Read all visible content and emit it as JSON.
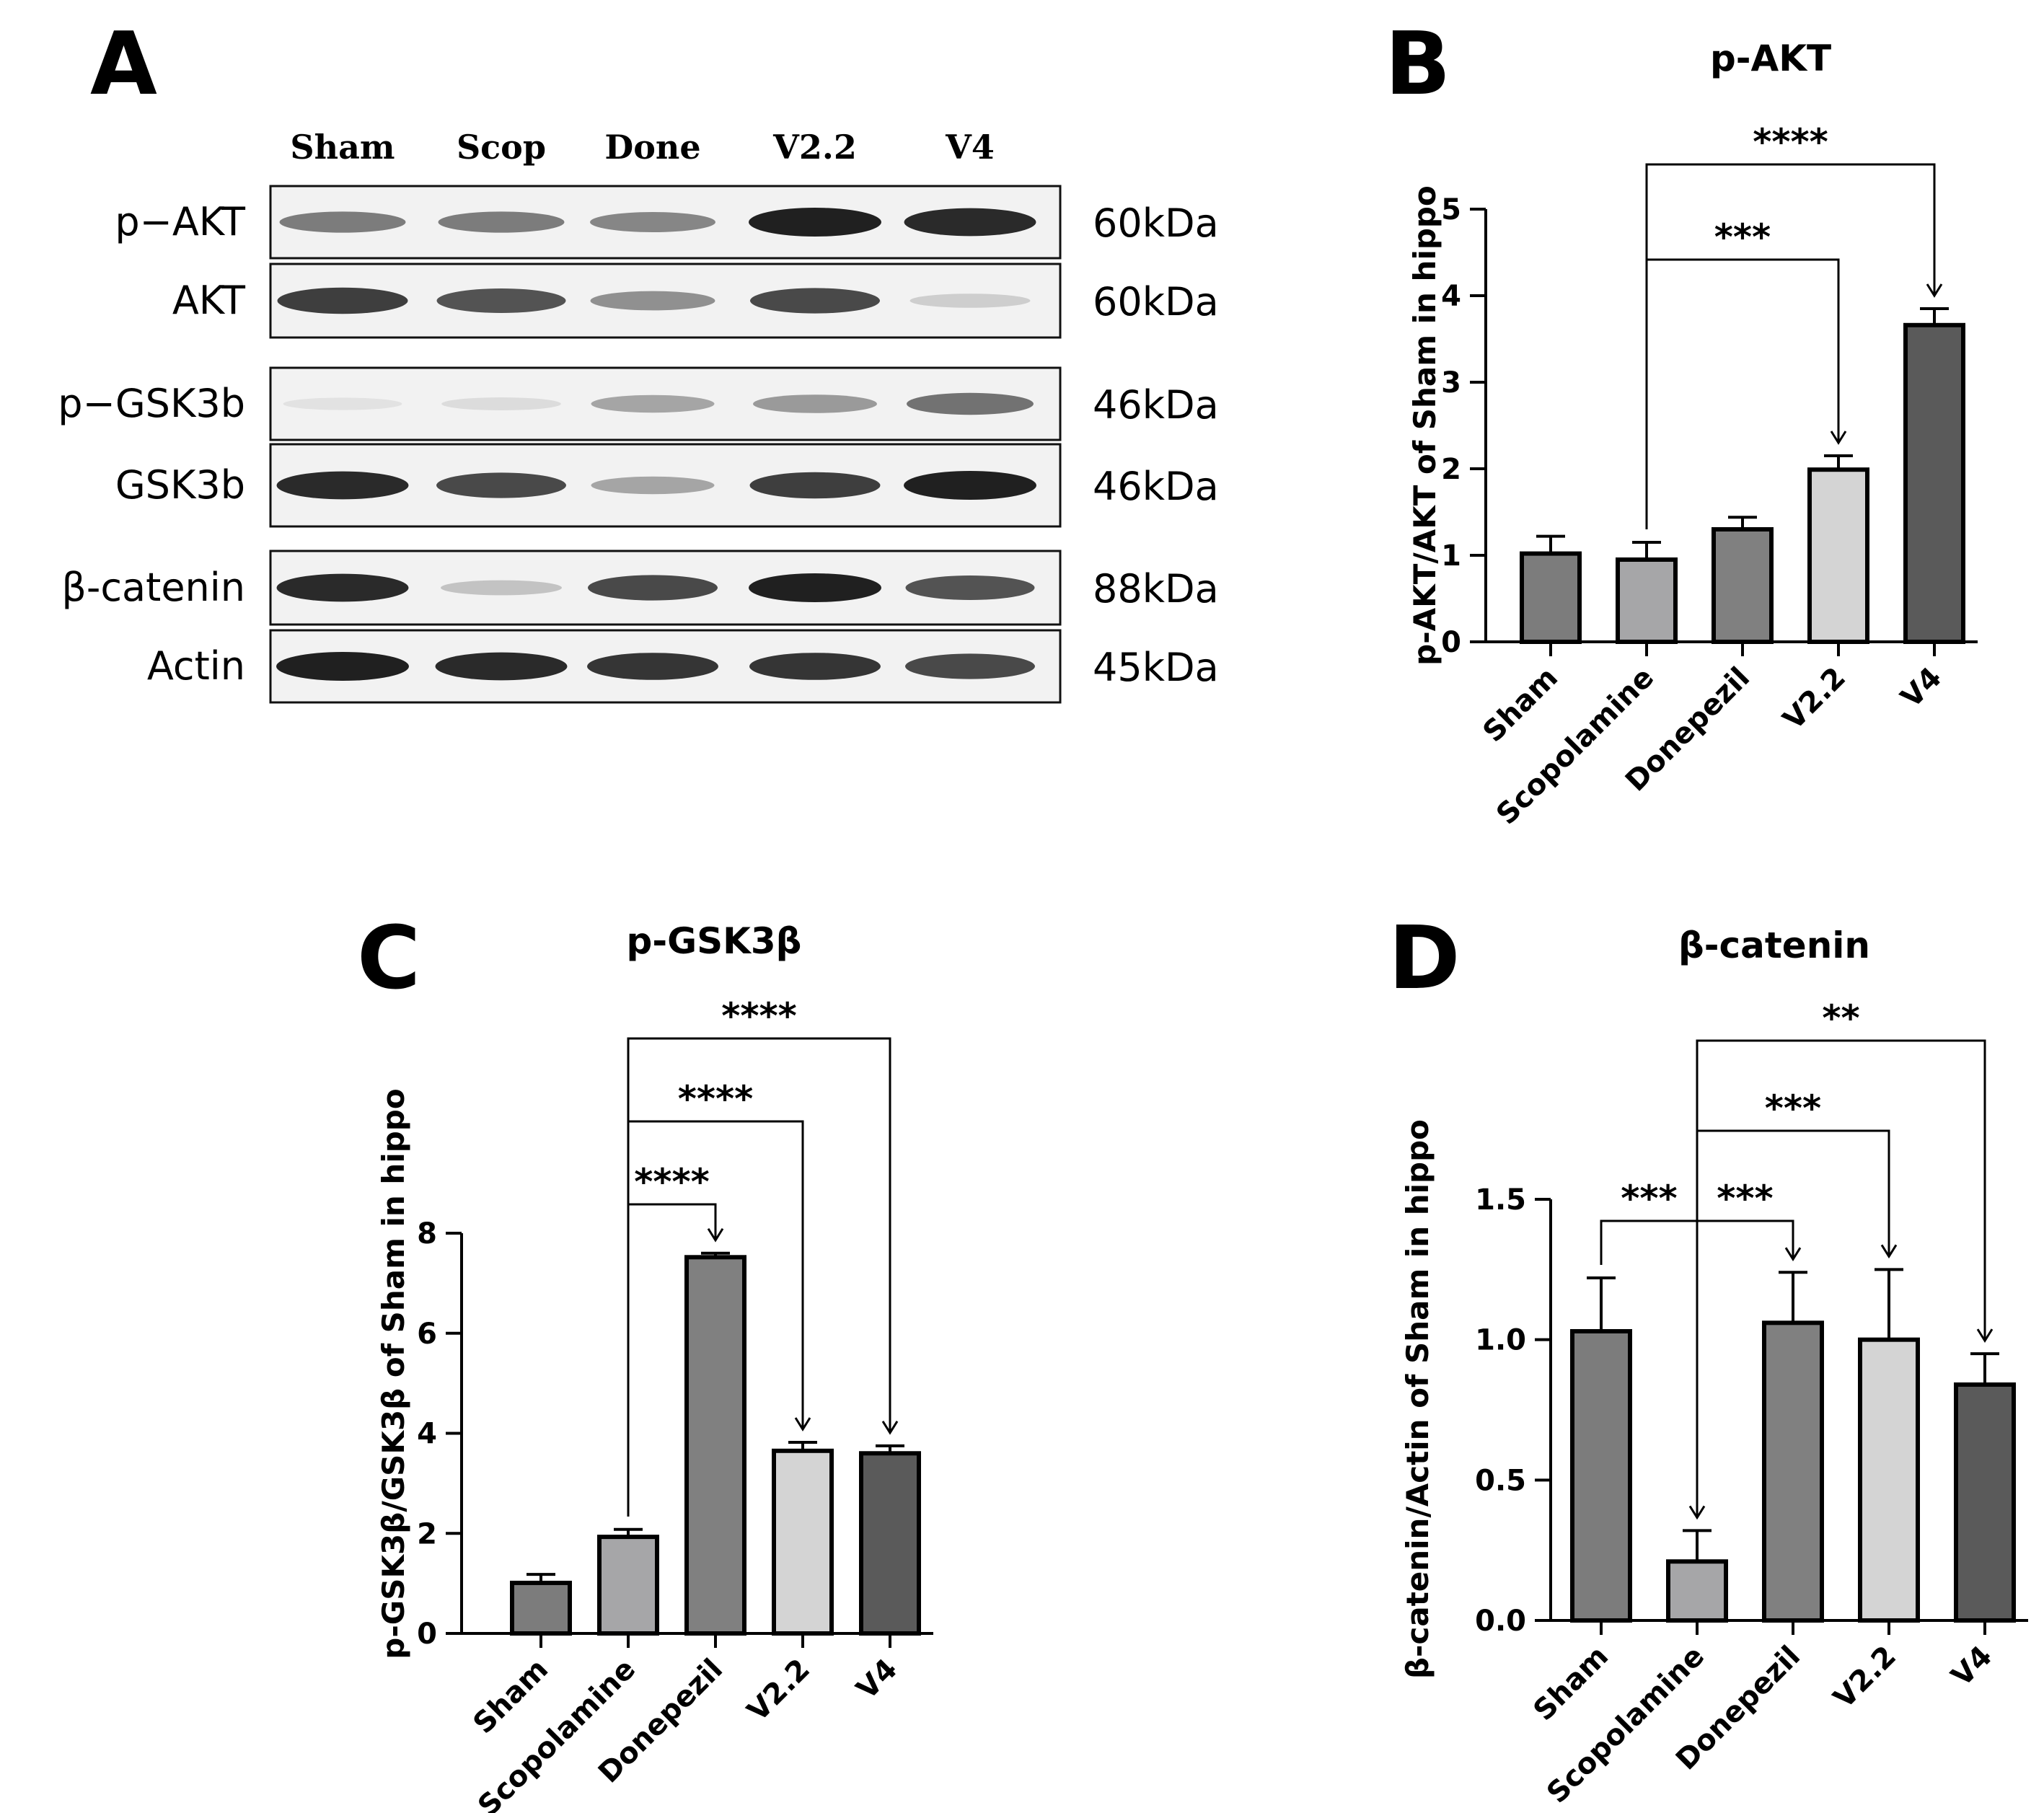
{
  "blot": {
    "panel_letter": "A",
    "lanes": [
      "Sham",
      "Scop",
      "Done",
      "V2.2",
      "V4"
    ],
    "rows": [
      {
        "label": "p−AKT",
        "kda": "60kDa",
        "bands": [
          0.55,
          0.55,
          0.5,
          1.0,
          0.95
        ]
      },
      {
        "label": "AKT",
        "kda": "60kDa",
        "bands": [
          0.85,
          0.75,
          0.45,
          0.8,
          0.15
        ]
      },
      {
        "label": "p−GSK3b",
        "kda": "46kDa",
        "bands": [
          0.05,
          0.08,
          0.35,
          0.4,
          0.6
        ]
      },
      {
        "label": "GSK3b",
        "kda": "46kDa",
        "bands": [
          0.95,
          0.8,
          0.35,
          0.85,
          1.0
        ]
      },
      {
        "label": "β-catenin",
        "kda": "88kDa",
        "bands": [
          0.95,
          0.2,
          0.8,
          1.0,
          0.75
        ]
      },
      {
        "label": "Actin",
        "kda": "45kDa",
        "bands": [
          1.0,
          0.95,
          0.9,
          0.9,
          0.8
        ]
      }
    ]
  },
  "panels": [
    {
      "letter": "B"
    },
    {
      "letter": "C"
    },
    {
      "letter": "D"
    }
  ],
  "chart_data": [
    {
      "type": "bar",
      "title": "p-AKT",
      "ylabel": "p-AKT/AKT of Sham in hippo",
      "xlabel": "",
      "categories": [
        "Sham",
        "Scopolamine",
        "Donepezil",
        "V2.2",
        "V4"
      ],
      "values": [
        1.02,
        0.95,
        1.3,
        1.99,
        3.66
      ],
      "errors": [
        0.2,
        0.2,
        0.14,
        0.16,
        0.19
      ],
      "colors": [
        "#7c7c7c",
        "#a6a6a8",
        "#808080",
        "#d4d4d4",
        "#5a5a5a"
      ],
      "ylim": [
        0,
        5
      ],
      "yticks": [
        "0",
        "1",
        "2",
        "3",
        "4",
        "5"
      ],
      "yticks_values": [
        0,
        1,
        2,
        3,
        4,
        5
      ],
      "significance": [
        {
          "from": "Scopolamine",
          "to": "V2.2",
          "label": "***"
        },
        {
          "from": "Scopolamine",
          "to": "V4",
          "label": "****"
        }
      ]
    },
    {
      "type": "bar",
      "title": "p-GSK3β",
      "ylabel": "p-GSK3β/GSK3β of Sham in hippo",
      "xlabel": "",
      "categories": [
        "Sham",
        "Scopolamine",
        "Donepezil",
        "V2.2",
        "V4"
      ],
      "values": [
        1.01,
        1.93,
        7.52,
        3.65,
        3.6
      ],
      "errors": [
        0.17,
        0.15,
        0.08,
        0.17,
        0.15
      ],
      "colors": [
        "#7c7c7c",
        "#a6a6a8",
        "#808080",
        "#d4d4d4",
        "#5a5a5a"
      ],
      "ylim": [
        0,
        8
      ],
      "yticks": [
        "0",
        "2",
        "4",
        "6",
        "8"
      ],
      "yticks_values": [
        0,
        2,
        4,
        6,
        8
      ],
      "significance": [
        {
          "from": "Scopolamine",
          "to": "Donepezil",
          "label": "****"
        },
        {
          "from": "Scopolamine",
          "to": "V2.2",
          "label": "****"
        },
        {
          "from": "Scopolamine",
          "to": "V4",
          "label": "****"
        }
      ]
    },
    {
      "type": "bar",
      "title": "β-catenin",
      "ylabel": "β-catenin/Actin of Sham in hippo",
      "xlabel": "",
      "categories": [
        "Sham",
        "Scopolamine",
        "Donepezil",
        "V2.2",
        "V4"
      ],
      "values": [
        1.03,
        0.21,
        1.06,
        1.0,
        0.84
      ],
      "errors": [
        0.19,
        0.11,
        0.18,
        0.25,
        0.11
      ],
      "colors": [
        "#7c7c7c",
        "#a6a6a8",
        "#808080",
        "#d4d4d4",
        "#5a5a5a"
      ],
      "ylim": [
        0,
        1.5
      ],
      "yticks": [
        "0.0",
        "0.5",
        "1.0",
        "1.5"
      ],
      "yticks_values": [
        0,
        0.5,
        1.0,
        1.5
      ],
      "significance": [
        {
          "from": "Sham",
          "to": "Scopolamine",
          "label": "***"
        },
        {
          "from": "Scopolamine",
          "to": "Donepezil",
          "label": "***"
        },
        {
          "from": "Scopolamine",
          "to": "V2.2",
          "label": "***"
        },
        {
          "from": "Scopolamine",
          "to": "V4",
          "label": "**"
        }
      ]
    }
  ]
}
